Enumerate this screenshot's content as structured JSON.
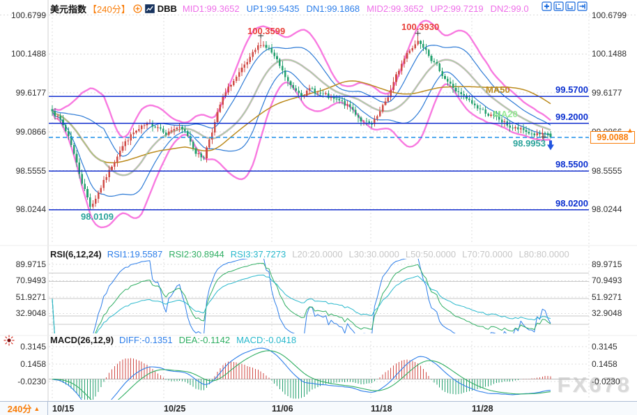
{
  "header": {
    "symbol": "美元指数",
    "timeframe": "【240分】",
    "indicator": "DBB",
    "readouts": [
      {
        "text": "MID1:99.3652",
        "color": "#ee6ee8"
      },
      {
        "text": "UP1:99.5435",
        "color": "#2b7de9"
      },
      {
        "text": "DN1:99.1868",
        "color": "#2b7de9"
      },
      {
        "text": "MID2:99.3652",
        "color": "#ee6ee8"
      },
      {
        "text": "UP2:99.7219",
        "color": "#ee6ee8"
      },
      {
        "text": "DN2:99.0",
        "color": "#ee6ee8"
      }
    ]
  },
  "toolbar_icons": [
    "move-crosshair-icon",
    "fit-vertical-axis-icon",
    "fit-horizontal-axis-icon",
    "pan-to-latest-icon"
  ],
  "rsi": {
    "title": "RSI(6,12,24)",
    "readouts": [
      {
        "text": "RSI1:19.5587",
        "color": "#2b7de9"
      },
      {
        "text": "RSI2:30.8944",
        "color": "#2fae62"
      },
      {
        "text": "RSI3:37.7273",
        "color": "#28b8cc"
      },
      {
        "text": "L20:20.0000",
        "color": "#c6c6c6"
      },
      {
        "text": "L30:30.0000",
        "color": "#c6c6c6"
      },
      {
        "text": "L50:50.0000",
        "color": "#c6c6c6"
      },
      {
        "text": "L70:70.0000",
        "color": "#c6c6c6"
      },
      {
        "text": "L80:80.0000",
        "color": "#c6c6c6"
      }
    ]
  },
  "macd": {
    "title": "MACD(26,12,9)",
    "readouts": [
      {
        "text": "DIFF:-0.1351",
        "color": "#2b7de9"
      },
      {
        "text": "DEA:-0.1142",
        "color": "#2fae62"
      },
      {
        "text": "MACD:-0.0418",
        "color": "#28b8cc"
      }
    ]
  },
  "footer": {
    "timeframe": "240分",
    "arrow": "▲",
    "dates": [
      "10/15",
      "10/25",
      "11/06",
      "11/18",
      "11/28"
    ]
  },
  "watermark": "FX678",
  "current_price_label": "99.0088",
  "low_marker_label": "98.9953",
  "overlay_labels": {
    "ma50": "MA50",
    "ma20": "MA20"
  },
  "colors": {
    "accent_orange": "#f97d09",
    "readout_pink": "#ee6ee8",
    "readout_blue": "#2b7de9",
    "level_blue_line": "#1430cf",
    "level_blue_text": "#0a2fd0",
    "candle_up_red": "#d04a45",
    "candle_down_green": "#23a06e",
    "band_outer_pink": "#f87ae0",
    "band_mid_mauve": "#d5a5c6",
    "band_inner_blue": "#2e7bd6",
    "ma50_olive": "#bb8a1c",
    "ma20_light_green": "#96ea96",
    "marker_teal_text": "#2aa39a",
    "marker_red_text": "#e8403a",
    "dashed_price_line": "#1b8fe8"
  },
  "chart_data": {
    "type": "candlestick",
    "symbol": "美元指数",
    "interval": "240分",
    "y_axis_ticks": [
      100.6799,
      100.1488,
      99.6177,
      99.0866,
      98.5555,
      98.0244
    ],
    "x_axis_labels": [
      "10/15",
      "10/25",
      "11/06",
      "11/18",
      "11/28"
    ],
    "horizontal_levels": [
      99.57,
      99.2,
      98.55,
      98.02
    ],
    "last_price": 99.0088,
    "marked_points": [
      {
        "label": "100.3599",
        "type": "swing-high"
      },
      {
        "label": "100.3930",
        "type": "swing-high"
      },
      {
        "label": "98.0109",
        "type": "swing-low"
      },
      {
        "label": "98.9953",
        "type": "last-bar-low"
      }
    ],
    "bollinger": {
      "MID1": 99.3652,
      "UP1": 99.5435,
      "DN1": 99.1868,
      "MID2": 99.3652,
      "UP2": 99.7219,
      "DN2": 99.0
    },
    "rsi": {
      "periods": [
        6,
        12,
        24
      ],
      "RSI1": 19.5587,
      "RSI2": 30.8944,
      "RSI3": 37.7273,
      "levels": [
        20,
        30,
        50,
        70,
        80
      ],
      "axis_ticks": [
        89.9715,
        70.9493,
        51.9271,
        32.9048
      ]
    },
    "macd": {
      "params": [
        26,
        12,
        9
      ],
      "DIFF": -0.1351,
      "DEA": -0.1142,
      "MACD": -0.0418,
      "axis_ticks": [
        0.3145,
        0.1458,
        -0.023
      ]
    },
    "price_path_anchors": [
      [
        0.0,
        99.4
      ],
      [
        0.015,
        99.25
      ],
      [
        0.035,
        99.0
      ],
      [
        0.055,
        98.5
      ],
      [
        0.077,
        98.06
      ],
      [
        0.095,
        98.3
      ],
      [
        0.115,
        98.55
      ],
      [
        0.135,
        98.85
      ],
      [
        0.16,
        99.05
      ],
      [
        0.185,
        99.15
      ],
      [
        0.21,
        99.18
      ],
      [
        0.23,
        99.08
      ],
      [
        0.25,
        99.15
      ],
      [
        0.27,
        99.05
      ],
      [
        0.29,
        98.8
      ],
      [
        0.303,
        98.72
      ],
      [
        0.32,
        99.1
      ],
      [
        0.34,
        99.5
      ],
      [
        0.36,
        99.75
      ],
      [
        0.385,
        99.95
      ],
      [
        0.405,
        100.15
      ],
      [
        0.42,
        100.3
      ],
      [
        0.435,
        100.22
      ],
      [
        0.45,
        100.05
      ],
      [
        0.465,
        99.85
      ],
      [
        0.48,
        99.68
      ],
      [
        0.5,
        99.62
      ],
      [
        0.52,
        99.66
      ],
      [
        0.54,
        99.6
      ],
      [
        0.56,
        99.52
      ],
      [
        0.58,
        99.48
      ],
      [
        0.6,
        99.4
      ],
      [
        0.62,
        99.25
      ],
      [
        0.64,
        99.15
      ],
      [
        0.655,
        99.3
      ],
      [
        0.67,
        99.5
      ],
      [
        0.685,
        99.75
      ],
      [
        0.7,
        100.0
      ],
      [
        0.715,
        100.2
      ],
      [
        0.734,
        100.34
      ],
      [
        0.75,
        100.25
      ],
      [
        0.765,
        100.05
      ],
      [
        0.78,
        99.9
      ],
      [
        0.8,
        99.72
      ],
      [
        0.82,
        99.58
      ],
      [
        0.845,
        99.45
      ],
      [
        0.87,
        99.35
      ],
      [
        0.895,
        99.25
      ],
      [
        0.92,
        99.15
      ],
      [
        0.95,
        99.08
      ],
      [
        0.975,
        99.04
      ],
      [
        1.0,
        99.01
      ]
    ]
  }
}
